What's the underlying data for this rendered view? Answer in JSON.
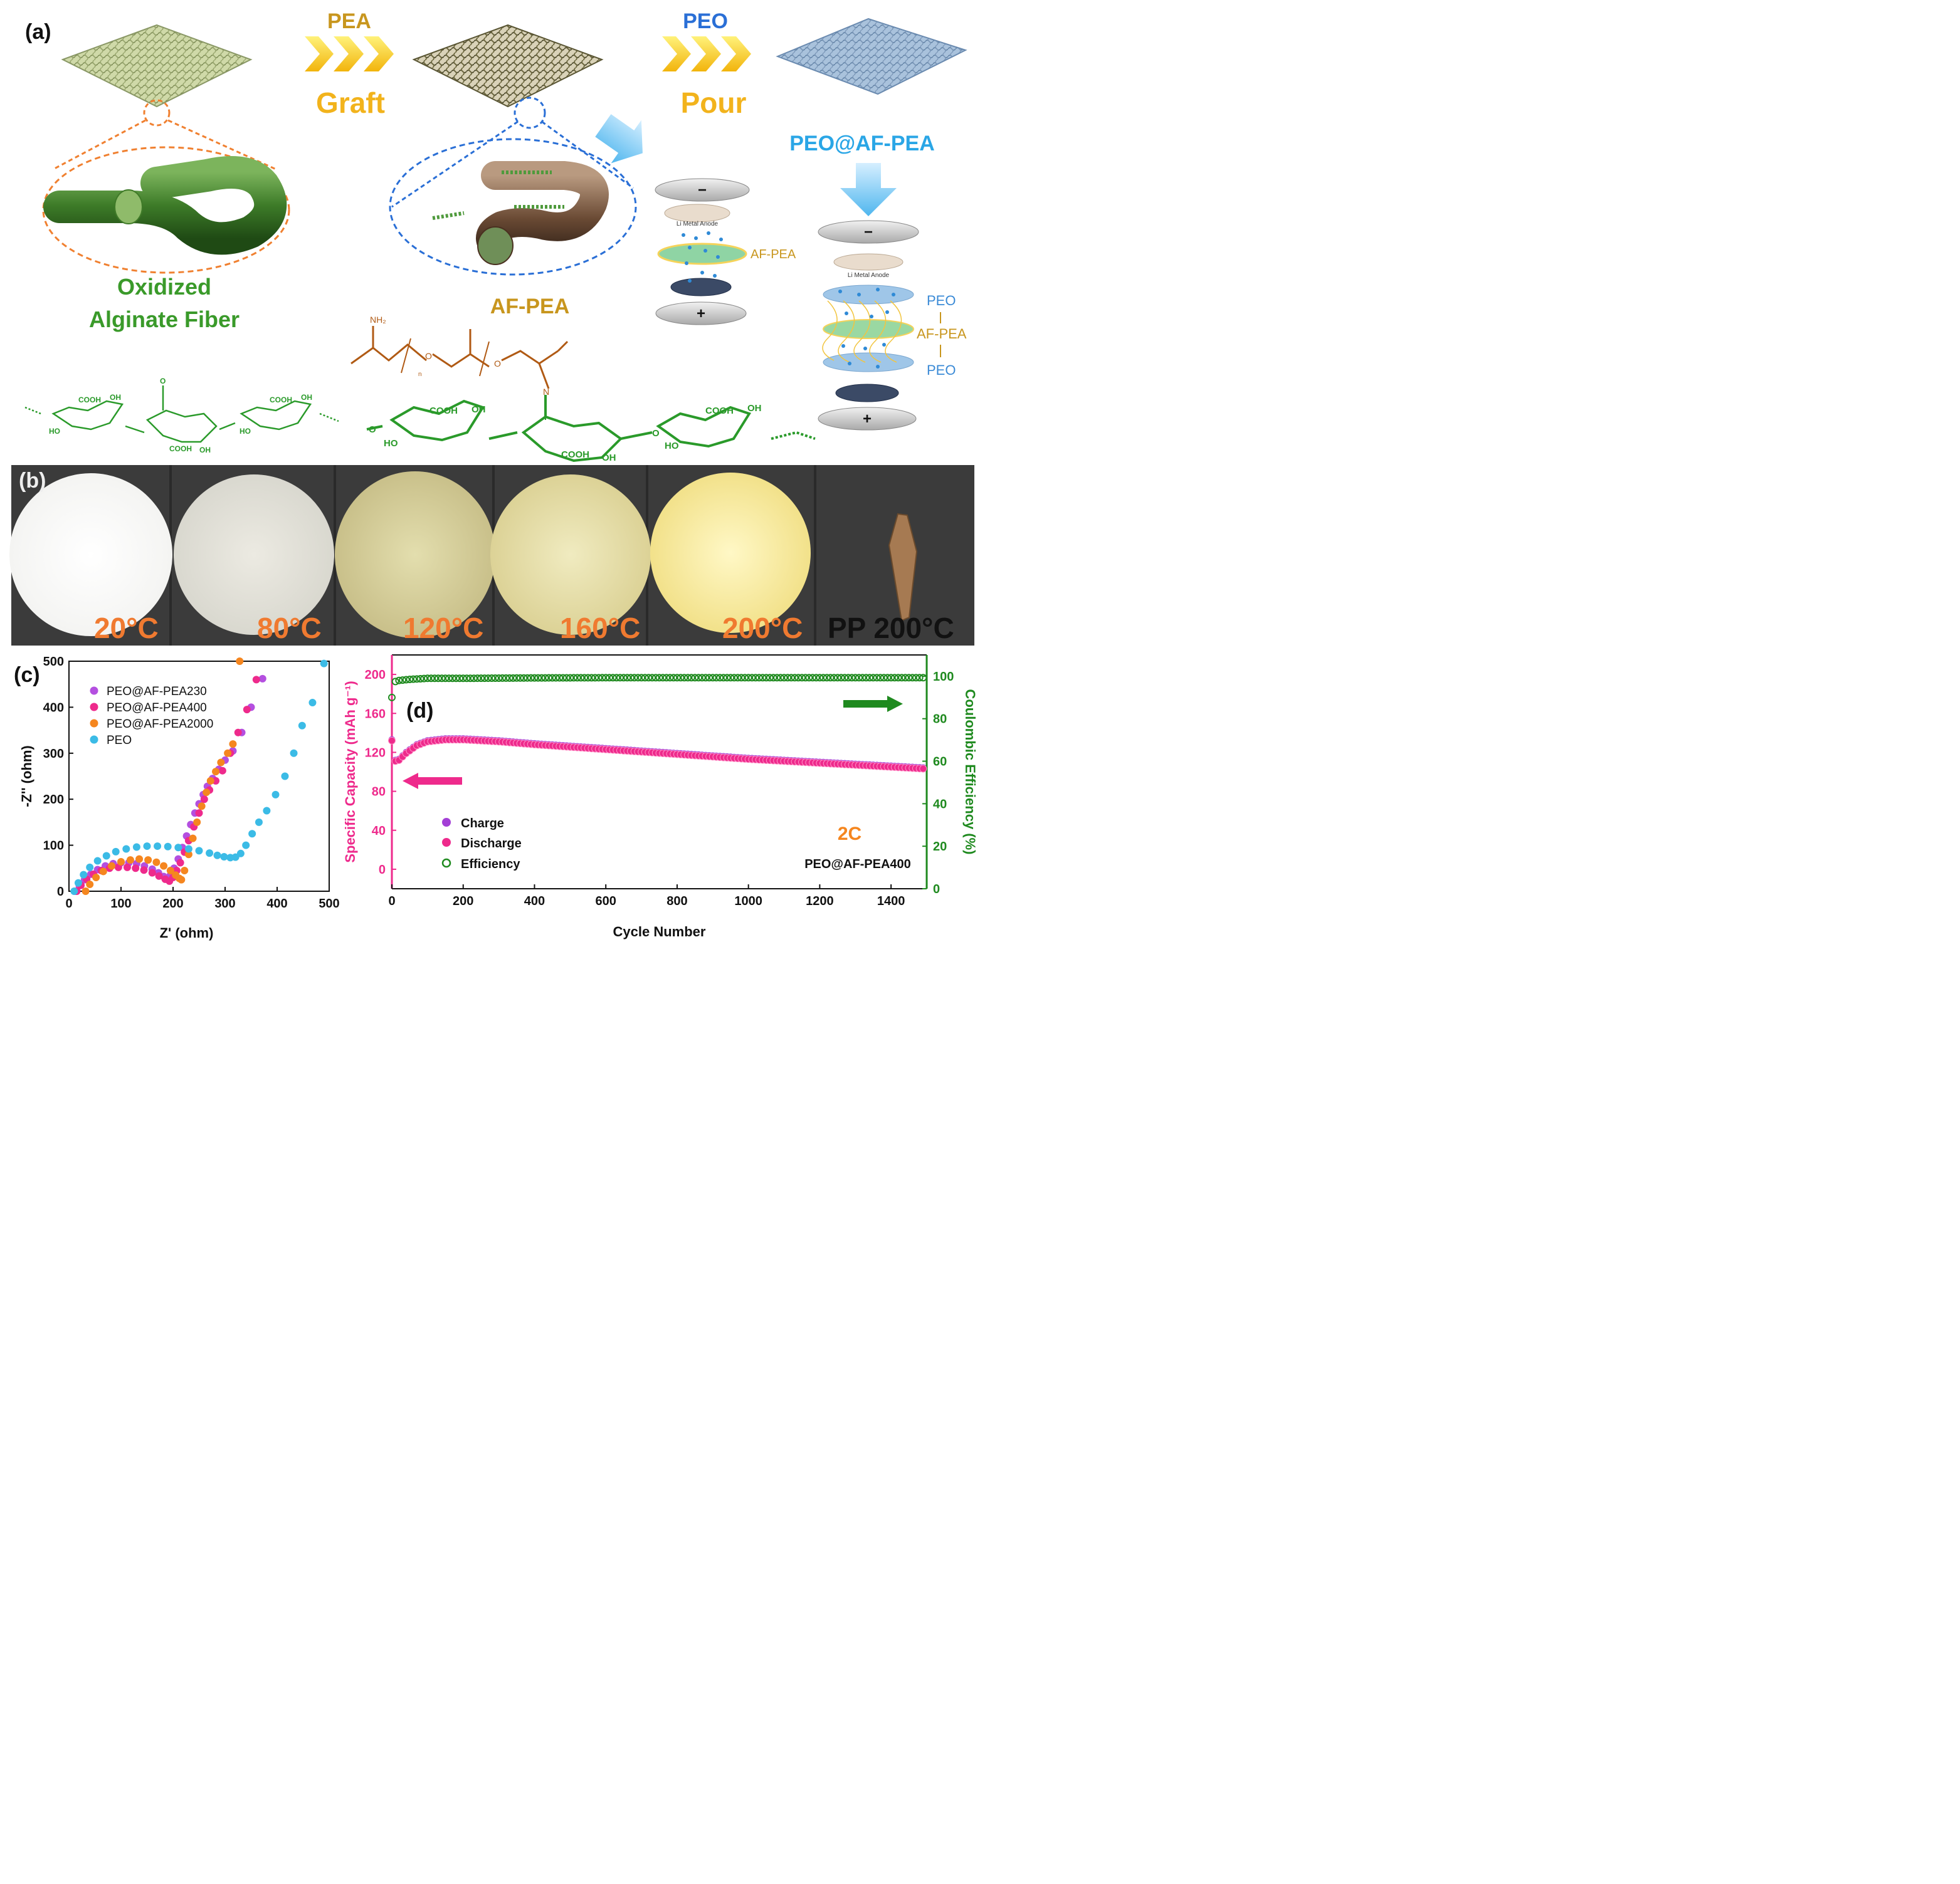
{
  "panel_a": {
    "letter": "(a)",
    "arrow1_top": "PEA",
    "arrow1_bottom": "Graft",
    "arrow2_top": "PEO",
    "arrow2_bottom": "Pour",
    "fiber_label_line1": "Oxidized",
    "fiber_label_line2": "Alginate Fiber",
    "afpea_label": "AF-PEA",
    "product_label": "PEO@AF-PEA",
    "cell1": {
      "anode": "Li Metal Anode",
      "separator": "AF-PEA",
      "minus": "−",
      "plus": "+"
    },
    "cell2": {
      "anode": "Li Metal Anode",
      "peo_top": "PEO",
      "afpea": "AF-PEA",
      "peo_bottom": "PEO",
      "minus": "−",
      "plus": "+"
    },
    "chem": {
      "nh2": "NH₂",
      "o": "O",
      "n_sub": "n",
      "n": "N",
      "cooh": "COOH",
      "oh": "OH",
      "ho": "HO",
      "keto_o": "O"
    },
    "colors": {
      "orange": "#f08030",
      "blue": "#2a6fd6",
      "green": "#3a9a2a",
      "gold": "#c8961e",
      "brown": "#b05a14",
      "sky": "#3cb4e6"
    }
  },
  "panel_b": {
    "letter": "(b)",
    "labels": [
      "20°C",
      "80°C",
      "120°C",
      "160°C",
      "200°C",
      "PP 200°C"
    ]
  },
  "panel_c": {
    "letter": "(c)"
  },
  "panel_d": {
    "letter": "(d)",
    "rate": "2C",
    "sample": "PEO@AF-PEA400"
  },
  "chart_data": [
    {
      "type": "scatter",
      "xlabel": "Z' (ohm)",
      "ylabel": "-Z'' (ohm)",
      "xlim": [
        0,
        500
      ],
      "ylim": [
        0,
        500
      ],
      "xticks": [
        0,
        100,
        200,
        300,
        400,
        500
      ],
      "yticks": [
        0,
        100,
        200,
        300,
        400,
        500
      ],
      "legend_position": "top-left",
      "series": [
        {
          "name": "PEO@AF-PEA230",
          "color": "#b44fe0",
          "x": [
            13,
            20,
            30,
            42,
            55,
            70,
            85,
            100,
            115,
            130,
            145,
            160,
            172,
            182,
            188,
            195,
            202,
            210,
            218,
            226,
            234,
            242,
            250,
            258,
            266,
            276,
            288,
            300,
            315,
            332,
            350,
            372
          ],
          "y": [
            0,
            12,
            25,
            37,
            47,
            55,
            60,
            62,
            62,
            60,
            55,
            48,
            40,
            32,
            28,
            35,
            50,
            70,
            95,
            120,
            145,
            170,
            190,
            210,
            228,
            245,
            265,
            285,
            305,
            345,
            400,
            462
          ]
        },
        {
          "name": "PEO@AF-PEA400",
          "color": "#ee2a8c",
          "x": [
            15,
            23,
            34,
            47,
            62,
            78,
            95,
            112,
            128,
            144,
            160,
            173,
            185,
            193,
            200,
            207,
            214,
            222,
            230,
            240,
            250,
            260,
            270,
            282,
            295,
            310,
            325,
            342,
            360,
            385
          ],
          "y": [
            0,
            13,
            26,
            37,
            45,
            50,
            52,
            52,
            50,
            46,
            40,
            33,
            26,
            22,
            30,
            45,
            62,
            85,
            110,
            140,
            170,
            200,
            220,
            240,
            262,
            300,
            345,
            395,
            460,
            505
          ]
        },
        {
          "name": "PEO@AF-PEA2000",
          "color": "#f5861f",
          "x": [
            32,
            40,
            52,
            66,
            82,
            100,
            118,
            135,
            152,
            168,
            182,
            195,
            205,
            212,
            216,
            222,
            230,
            238,
            246,
            255,
            264,
            272,
            282,
            292,
            305,
            315,
            328
          ],
          "y": [
            0,
            15,
            30,
            43,
            55,
            64,
            68,
            70,
            68,
            63,
            55,
            45,
            35,
            28,
            25,
            45,
            80,
            115,
            150,
            185,
            215,
            240,
            260,
            280,
            300,
            320,
            500
          ]
        },
        {
          "name": "PEO",
          "color": "#3bbbe6",
          "x": [
            10,
            18,
            28,
            40,
            55,
            72,
            90,
            110,
            130,
            150,
            170,
            190,
            210,
            230,
            250,
            270,
            285,
            298,
            310,
            320,
            330,
            340,
            352,
            365,
            380,
            397,
            415,
            432,
            448,
            468,
            490
          ],
          "y": [
            0,
            18,
            36,
            52,
            66,
            77,
            86,
            92,
            96,
            98,
            98,
            97,
            95,
            92,
            88,
            83,
            78,
            75,
            73,
            74,
            82,
            100,
            125,
            150,
            175,
            210,
            250,
            300,
            360,
            410,
            495
          ]
        }
      ]
    },
    {
      "type": "scatter",
      "xlabel": "Cycle Number",
      "ylabel": "Specific Capacity (mAh g⁻¹)",
      "y2label": "Coulombic Efficiency (%)",
      "xlim": [
        0,
        1500
      ],
      "ylim": [
        -20,
        220
      ],
      "y2lim": [
        0,
        110
      ],
      "xticks": [
        0,
        200,
        400,
        600,
        800,
        1000,
        1200,
        1400
      ],
      "yticks": [
        0,
        40,
        80,
        120,
        160,
        200
      ],
      "y2ticks": [
        0,
        20,
        40,
        60,
        80,
        100
      ],
      "legend_position": "bottom-left",
      "series": [
        {
          "name": "Charge",
          "color": "#a33fd6",
          "axis": "left",
          "x": [
            0,
            5,
            10,
            20,
            40,
            70,
            100,
            150,
            200,
            300,
            400,
            600,
            800,
            1000,
            1200,
            1400,
            1500
          ],
          "y": [
            133,
            117,
            112,
            113,
            120,
            128,
            132,
            134,
            134,
            132,
            129,
            124,
            119,
            114,
            110,
            106,
            104
          ]
        },
        {
          "name": "Discharge",
          "color": "#ee2a8c",
          "axis": "left",
          "x": [
            0,
            5,
            10,
            20,
            40,
            70,
            100,
            150,
            200,
            300,
            400,
            600,
            800,
            1000,
            1200,
            1400,
            1500
          ],
          "y": [
            132,
            116,
            111,
            112,
            119,
            127,
            131,
            133,
            133,
            131,
            128,
            123,
            118,
            113,
            109,
            105,
            103
          ]
        },
        {
          "name": "Efficiency",
          "color": "#1f8a1f",
          "axis": "right",
          "x": [
            0,
            2,
            5,
            10,
            20,
            50,
            100,
            200,
            400,
            600,
            800,
            1000,
            1200,
            1400,
            1500
          ],
          "y": [
            90,
            96,
            97,
            97.5,
            98,
            98.5,
            99,
            99,
            99.2,
            99.3,
            99.3,
            99.3,
            99.3,
            99.3,
            99.3
          ]
        }
      ]
    }
  ]
}
